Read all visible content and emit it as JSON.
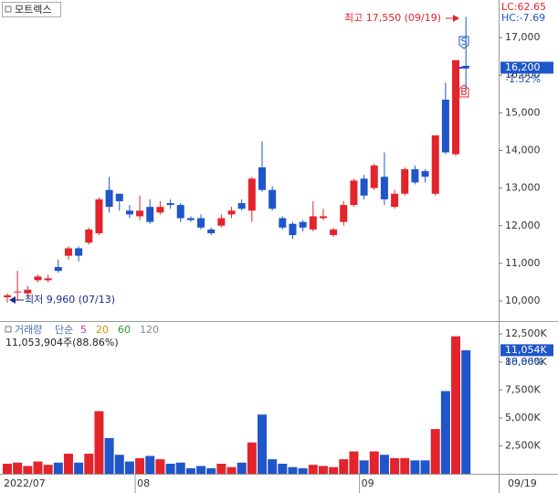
{
  "chart_data": {
    "type": "candlestick",
    "title": "모트렉스",
    "lc": "LC:62.65",
    "hc": "HC:-7.69",
    "categories": [
      "2022/07",
      null,
      null,
      null,
      null,
      null,
      null,
      null,
      null,
      null,
      null,
      null,
      null,
      "08",
      null,
      null,
      null,
      null,
      null,
      null,
      null,
      null,
      null,
      null,
      null,
      null,
      null,
      null,
      null,
      null,
      null,
      null,
      null,
      null,
      null,
      "09",
      null,
      null,
      null,
      null,
      null,
      null,
      null,
      null,
      null,
      null
    ],
    "open": [
      10100,
      10250,
      10200,
      10550,
      10550,
      10900,
      11200,
      11400,
      11550,
      11800,
      12950,
      12850,
      12400,
      12250,
      12500,
      12350,
      12600,
      12550,
      12200,
      12200,
      11900,
      12000,
      12300,
      12600,
      12400,
      13550,
      12950,
      12200,
      12050,
      12100,
      11900,
      12200,
      11750,
      12100,
      12550,
      13250,
      13000,
      13300,
      12500,
      12850,
      13500,
      13450,
      12850,
      15350,
      13900,
      16250
    ],
    "high": [
      10200,
      10800,
      10400,
      10700,
      10700,
      11100,
      11450,
      11450,
      11950,
      12750,
      13300,
      12850,
      12550,
      12800,
      12700,
      12650,
      12700,
      12600,
      12250,
      12300,
      11950,
      12300,
      12500,
      12700,
      13300,
      14250,
      13050,
      12250,
      12100,
      12150,
      12650,
      12450,
      11950,
      12650,
      13250,
      13350,
      13650,
      13950,
      12950,
      13550,
      13600,
      13500,
      14400,
      15800,
      16400,
      17550
    ],
    "low": [
      9960,
      10000,
      10150,
      10500,
      10500,
      10750,
      11100,
      11050,
      11500,
      11750,
      12350,
      12400,
      12200,
      12150,
      12050,
      12300,
      12450,
      12100,
      12100,
      11900,
      11750,
      11950,
      12200,
      12400,
      12100,
      12900,
      12400,
      11900,
      11650,
      11850,
      11850,
      12150,
      11700,
      12000,
      12500,
      12700,
      12950,
      12550,
      12450,
      12800,
      13100,
      13150,
      12800,
      13900,
      13850,
      15600
    ],
    "close": [
      10150,
      10250,
      10300,
      10650,
      10600,
      10800,
      11400,
      11200,
      11900,
      12700,
      12500,
      12650,
      12300,
      12400,
      12100,
      12500,
      12550,
      12200,
      12150,
      11950,
      11800,
      12200,
      12400,
      12450,
      13250,
      12950,
      12450,
      11950,
      11750,
      11950,
      12250,
      12250,
      11900,
      12550,
      13200,
      12800,
      13600,
      12700,
      12850,
      13500,
      13150,
      13300,
      14400,
      13950,
      16400,
      16200
    ],
    "colors": {
      "up": "#e3242b",
      "down": "#1f56c9"
    },
    "ylim": [
      9490,
      17950
    ],
    "yticks": [
      {
        "value": 17000,
        "label": "17,000"
      },
      {
        "value": 16000,
        "label": "16,000"
      },
      {
        "value": 15000,
        "label": "15,000"
      },
      {
        "value": 14000,
        "label": "14,000"
      },
      {
        "value": 13000,
        "label": "13,000"
      },
      {
        "value": 12000,
        "label": "12,000"
      },
      {
        "value": 11000,
        "label": "11,000"
      },
      {
        "value": 10000,
        "label": "10,000"
      }
    ],
    "high_label": "최고 17,550 (09/19)",
    "low_label": "최저 9,960 (07/13)",
    "last": {
      "value": 16200,
      "label": "16,200"
    },
    "change": "-1.52%",
    "current_date": "09/19",
    "volume": {
      "type": "bar",
      "title": "거래량",
      "ma_label": "단순",
      "ma": [
        {
          "period": 5,
          "color": "#d0309a"
        },
        {
          "period": 20,
          "color": "#e08a00"
        },
        {
          "period": 60,
          "color": "#2a9a2a"
        },
        {
          "period": 120,
          "color": "#888888"
        }
      ],
      "summary": "11,053,904주(88.86%)",
      "values": [
        900,
        1000,
        700,
        1100,
        800,
        1000,
        1800,
        1000,
        1800,
        5600,
        3200,
        1700,
        1100,
        1400,
        1600,
        1300,
        900,
        1000,
        500,
        700,
        500,
        900,
        600,
        1000,
        2800,
        5300,
        1300,
        900,
        600,
        500,
        800,
        700,
        600,
        1300,
        2000,
        1200,
        2000,
        1700,
        1400,
        1400,
        1200,
        1200,
        4000,
        7400,
        12300,
        11054
      ],
      "ylim": [
        0,
        13500
      ],
      "yticks": [
        {
          "value": 12500,
          "label": "12,500K"
        },
        {
          "value": 10000,
          "label": "10,000K"
        },
        {
          "value": 7500,
          "label": "7,500K"
        },
        {
          "value": 5000,
          "label": "5,000K"
        },
        {
          "value": 2500,
          "label": "2,500K"
        }
      ],
      "last": {
        "value": 11054,
        "label": "11,054K"
      },
      "ratio": "88.86%"
    }
  }
}
